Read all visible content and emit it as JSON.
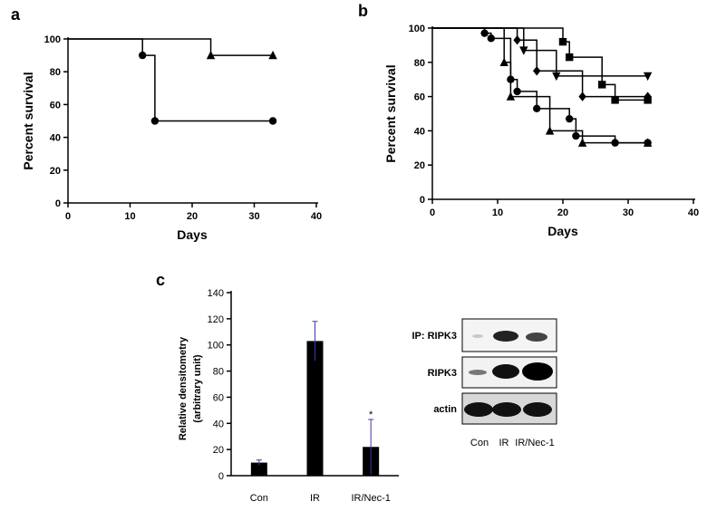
{
  "chart_data": [
    {
      "type": "step",
      "panel_label": "a",
      "xlabel": "Days",
      "ylabel": "Percent survival",
      "xlim": [
        0,
        40
      ],
      "xticks": [
        0,
        10,
        20,
        30,
        40
      ],
      "ylim": [
        0,
        100
      ],
      "yticks": [
        0,
        20,
        40,
        60,
        80,
        100
      ],
      "series": [
        {
          "marker": "circle",
          "color": "#000000",
          "x": [
            0,
            12,
            14,
            33
          ],
          "values": [
            100,
            90,
            50,
            50
          ]
        },
        {
          "marker": "triangle",
          "color": "#000000",
          "x": [
            0,
            23,
            33
          ],
          "values": [
            100,
            90,
            90
          ]
        }
      ]
    },
    {
      "type": "step",
      "panel_label": "b",
      "xlabel": "Days",
      "ylabel": "Percent survival",
      "xlim": [
        0,
        40
      ],
      "xticks": [
        0,
        10,
        20,
        30,
        40
      ],
      "ylim": [
        0,
        100
      ],
      "yticks": [
        0,
        20,
        40,
        60,
        80,
        100
      ],
      "series": [
        {
          "marker": "circle",
          "color": "#000000",
          "x": [
            0,
            8,
            9,
            12,
            13,
            16,
            21,
            22,
            28,
            33
          ],
          "values": [
            100,
            97,
            94,
            70,
            63,
            53,
            47,
            37,
            33,
            33
          ]
        },
        {
          "marker": "triangle",
          "color": "#000000",
          "x": [
            0,
            11,
            12,
            18,
            23,
            33
          ],
          "values": [
            100,
            80,
            60,
            40,
            33,
            33
          ]
        },
        {
          "marker": "square",
          "color": "#000000",
          "x": [
            0,
            20,
            21,
            26,
            28,
            33
          ],
          "values": [
            100,
            92,
            83,
            67,
            58,
            58
          ]
        },
        {
          "marker": "triangle-down",
          "color": "#000000",
          "x": [
            0,
            14,
            19,
            33
          ],
          "values": [
            100,
            87,
            72,
            72
          ]
        },
        {
          "marker": "diamond",
          "color": "#000000",
          "x": [
            0,
            13,
            16,
            23,
            33
          ],
          "values": [
            100,
            93,
            75,
            60,
            60
          ]
        }
      ]
    },
    {
      "type": "bar",
      "panel_label": "c",
      "ylabel": [
        "Relative densitometry",
        "(arbitrary unit)"
      ],
      "categories": [
        "Con",
        "IR",
        "IR/Nec-1"
      ],
      "values": [
        10,
        103,
        22
      ],
      "errors": [
        2,
        15,
        21
      ],
      "color": "#000000",
      "error_color": "#3a3ab0",
      "annotation": "*",
      "ylim": [
        0,
        140
      ],
      "yticks": [
        0,
        20,
        40,
        60,
        80,
        100,
        120,
        140
      ]
    }
  ],
  "blot": {
    "rows": [
      "IP: RIPK3",
      "RIPK3",
      "actin"
    ],
    "lanes": [
      "Con",
      "IR",
      "IR/Nec-1"
    ]
  }
}
